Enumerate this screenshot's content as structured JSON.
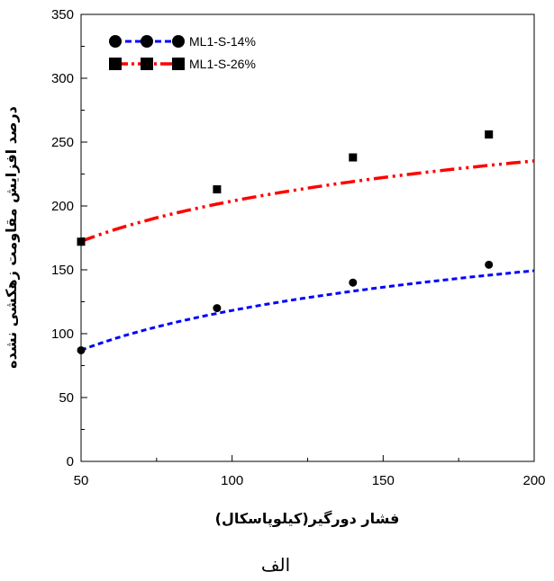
{
  "chart_data": {
    "type": "scatter",
    "xlabel": "فشار دورگیر(کیلوپاسکال)",
    "ylabel": "درصد افزایش مقاومت زهکشی نشده",
    "caption": "الف",
    "xlim": [
      50,
      200
    ],
    "ylim": [
      0,
      350
    ],
    "xticks": [
      50,
      100,
      150,
      200
    ],
    "yticks": [
      0,
      50,
      100,
      150,
      200,
      250,
      300,
      350
    ],
    "grid": false,
    "legend_position": "top-left",
    "series": [
      {
        "name": "ML1-S-14%",
        "marker": "circle",
        "color": "#0000ff",
        "line_style": "dashed",
        "x": [
          50,
          95,
          140,
          185
        ],
        "y": [
          87,
          120,
          140,
          154
        ],
        "fit": {
          "a": -88.5,
          "b": 44.88,
          "x_end": 200
        }
      },
      {
        "name": "ML1-S-26%",
        "marker": "square",
        "color": "#ff0000",
        "line_style": "dash-dot-dot",
        "x": [
          50,
          95,
          140,
          185
        ],
        "y": [
          172,
          213,
          238,
          256
        ],
        "fit": {
          "a": -5.55,
          "b": 45.46,
          "x_end": 200
        }
      }
    ]
  }
}
